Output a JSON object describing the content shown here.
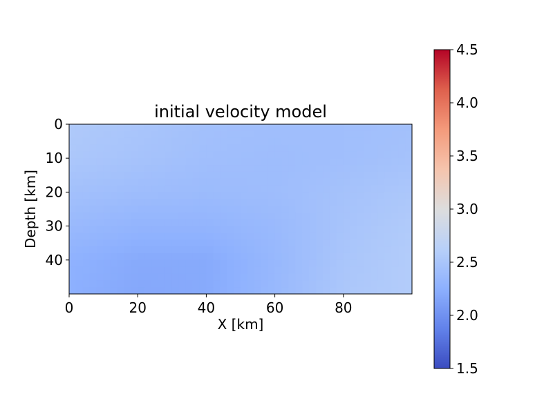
{
  "chart_data": {
    "type": "heatmap",
    "title": "initial velocity model",
    "xlabel": "X [km]",
    "ylabel": "Depth [km]",
    "xlim": [
      0,
      100
    ],
    "ylim": [
      50,
      0
    ],
    "x_ticks": [
      {
        "value": 0,
        "label": "0"
      },
      {
        "value": 20,
        "label": "20"
      },
      {
        "value": 40,
        "label": "40"
      },
      {
        "value": 60,
        "label": "60"
      },
      {
        "value": 80,
        "label": "80"
      }
    ],
    "y_ticks": [
      {
        "value": 0,
        "label": "0"
      },
      {
        "value": 10,
        "label": "10"
      },
      {
        "value": 20,
        "label": "20"
      },
      {
        "value": 30,
        "label": "30"
      },
      {
        "value": 40,
        "label": "40"
      }
    ],
    "colorbar": {
      "colormap": "coolwarm",
      "vmin": 1.5,
      "vmax": 4.5,
      "ticks": [
        {
          "value": 1.5,
          "label": "1.5"
        },
        {
          "value": 2.0,
          "label": "2.0"
        },
        {
          "value": 2.5,
          "label": "2.5"
        },
        {
          "value": 3.0,
          "label": "3.0"
        },
        {
          "value": 3.5,
          "label": "3.5"
        },
        {
          "value": 4.0,
          "label": "4.0"
        },
        {
          "value": 4.5,
          "label": "4.5"
        }
      ]
    },
    "grid_x": [
      0,
      20,
      40,
      60,
      80,
      100
    ],
    "grid_y": [
      0,
      10,
      20,
      30,
      40,
      50
    ],
    "values": [
      [
        2.55,
        2.5,
        2.44,
        2.42,
        2.42,
        2.44
      ],
      [
        2.52,
        2.47,
        2.42,
        2.4,
        2.42,
        2.46
      ],
      [
        2.44,
        2.4,
        2.38,
        2.4,
        2.46,
        2.52
      ],
      [
        2.36,
        2.3,
        2.3,
        2.36,
        2.48,
        2.56
      ],
      [
        2.27,
        2.2,
        2.2,
        2.34,
        2.5,
        2.58
      ],
      [
        2.25,
        2.18,
        2.2,
        2.35,
        2.52,
        2.58
      ]
    ]
  }
}
